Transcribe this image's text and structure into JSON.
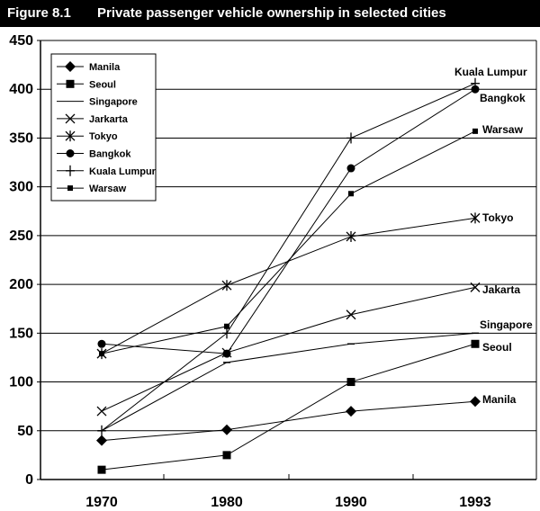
{
  "figure_label": "Figure 8.1",
  "title": "Private passenger vehicle ownership in selected cities",
  "chart_data": {
    "type": "line",
    "title": "Private passenger vehicle ownership in selected cities",
    "xlabel": "",
    "ylabel": "",
    "x": [
      "1970",
      "1980",
      "1990",
      "1993"
    ],
    "ylim": [
      0,
      450
    ],
    "yticks": [
      0,
      50,
      100,
      150,
      200,
      250,
      300,
      350,
      400,
      450
    ],
    "grid": true,
    "legend_position": "top-left",
    "series": [
      {
        "name": "Manila",
        "marker": "diamond",
        "values": [
          40,
          51,
          70,
          80
        ],
        "end_label": "Manila"
      },
      {
        "name": "Seoul",
        "marker": "square",
        "values": [
          10,
          25,
          100,
          139
        ],
        "end_label": "Seoul"
      },
      {
        "name": "Singapore",
        "marker": "dash",
        "values": [
          50,
          120,
          139,
          150
        ],
        "end_label": "Singapore"
      },
      {
        "name": "Jarkarta",
        "marker": "x",
        "values": [
          70,
          130,
          169,
          197
        ],
        "end_label": "Jakarta"
      },
      {
        "name": "Tokyo",
        "marker": "star",
        "values": [
          129,
          199,
          249,
          268
        ],
        "end_label": "Tokyo"
      },
      {
        "name": "Bangkok",
        "marker": "circle",
        "values": [
          139,
          129,
          319,
          400
        ],
        "end_label": "Bangkok"
      },
      {
        "name": "Kuala Lumpur",
        "marker": "plus",
        "values": [
          50,
          150,
          350,
          406
        ],
        "end_label": "Kuala Lumpur"
      },
      {
        "name": "Warsaw",
        "marker": "smallsquare",
        "values": [
          129,
          157,
          293,
          357
        ],
        "end_label": "Warsaw"
      }
    ]
  }
}
